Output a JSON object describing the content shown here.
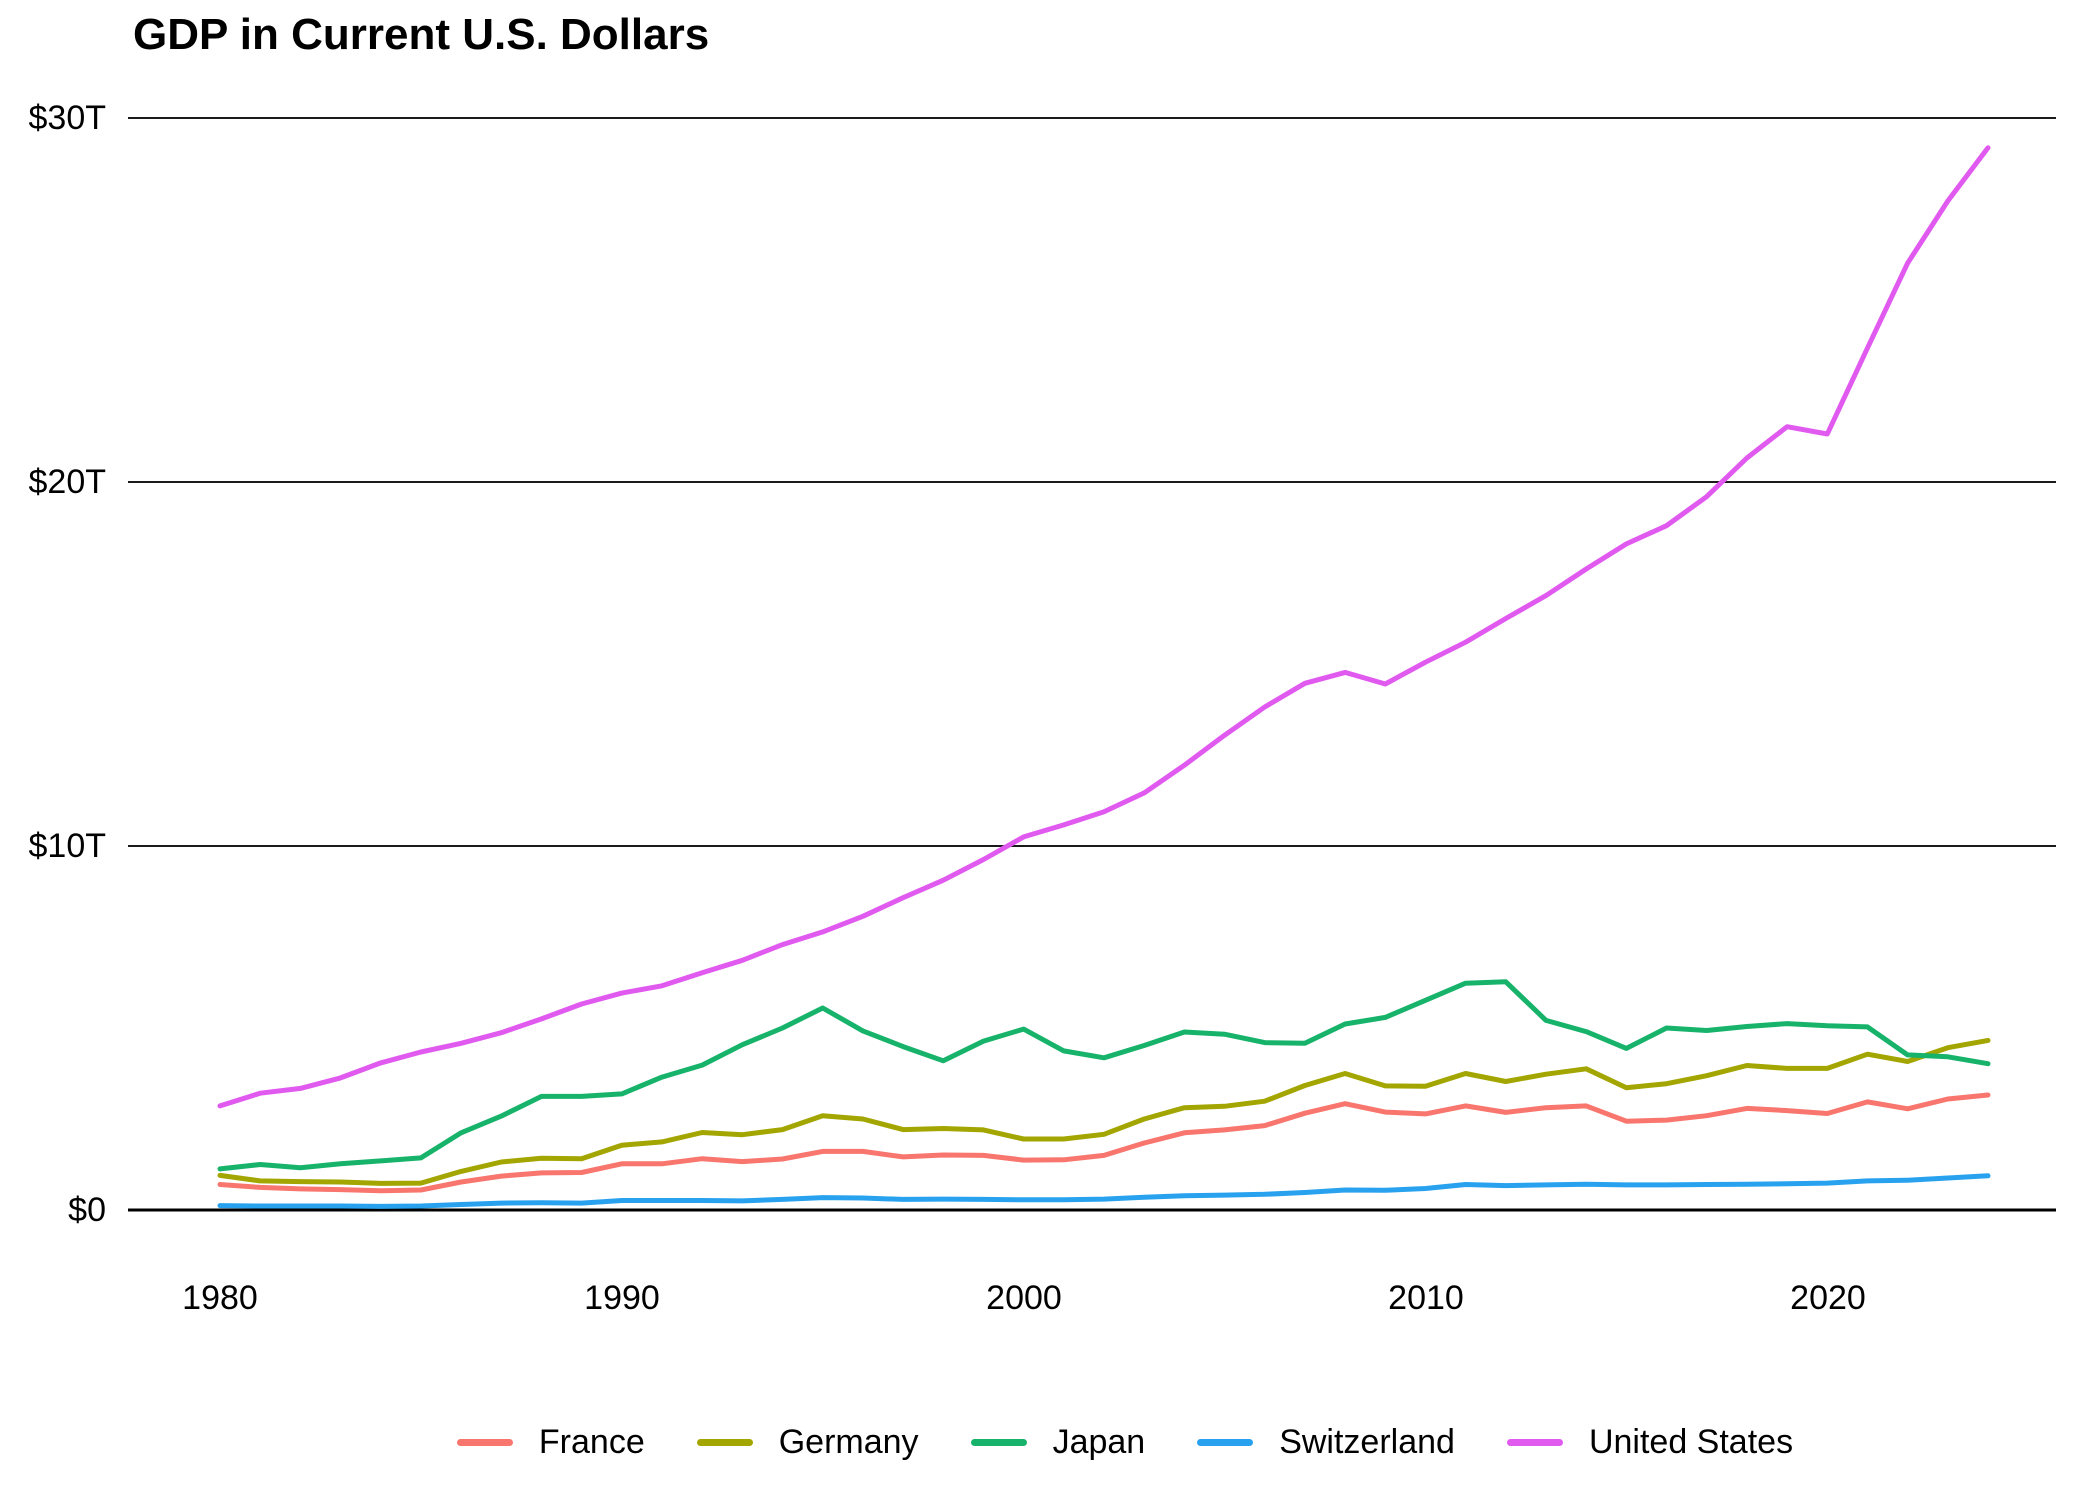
{
  "chart_data": {
    "type": "line",
    "title": "GDP in Current U.S. Dollars",
    "xlabel": "",
    "ylabel": "",
    "unit": "trillion USD",
    "xlim": [
      1980,
      2024
    ],
    "ylim": [
      0,
      30
    ],
    "grid": "horizontal",
    "legend_position": "bottom",
    "y_tick_labels": [
      "$30T",
      "$20T",
      "$10T",
      "$0"
    ],
    "y_tick_values": [
      30,
      20,
      10,
      0
    ],
    "x_tick_labels": [
      "1980",
      "1990",
      "2000",
      "2010",
      "2020"
    ],
    "x_tick_values": [
      1980,
      1990,
      2000,
      2010,
      2020
    ],
    "x": [
      1980,
      1981,
      1982,
      1983,
      1984,
      1985,
      1986,
      1987,
      1988,
      1989,
      1990,
      1991,
      1992,
      1993,
      1994,
      1995,
      1996,
      1997,
      1998,
      1999,
      2000,
      2001,
      2002,
      2003,
      2004,
      2005,
      2006,
      2007,
      2008,
      2009,
      2010,
      2011,
      2012,
      2013,
      2014,
      2015,
      2016,
      2017,
      2018,
      2019,
      2020,
      2021,
      2022,
      2023,
      2024
    ],
    "series": [
      {
        "name": "France",
        "color": "#F8766D",
        "values": [
          0.7,
          0.62,
          0.58,
          0.56,
          0.53,
          0.55,
          0.77,
          0.93,
          1.02,
          1.03,
          1.27,
          1.27,
          1.41,
          1.33,
          1.4,
          1.61,
          1.61,
          1.46,
          1.51,
          1.5,
          1.37,
          1.38,
          1.5,
          1.84,
          2.12,
          2.2,
          2.32,
          2.66,
          2.92,
          2.69,
          2.64,
          2.86,
          2.68,
          2.81,
          2.86,
          2.44,
          2.47,
          2.59,
          2.79,
          2.73,
          2.65,
          2.97,
          2.78,
          3.05,
          3.16
        ]
      },
      {
        "name": "Germany",
        "color": "#A3A500",
        "values": [
          0.95,
          0.8,
          0.78,
          0.77,
          0.73,
          0.74,
          1.06,
          1.32,
          1.42,
          1.41,
          1.78,
          1.87,
          2.13,
          2.07,
          2.21,
          2.59,
          2.5,
          2.21,
          2.24,
          2.2,
          1.95,
          1.95,
          2.08,
          2.5,
          2.81,
          2.85,
          2.99,
          3.42,
          3.75,
          3.41,
          3.4,
          3.75,
          3.53,
          3.73,
          3.88,
          3.36,
          3.47,
          3.69,
          3.97,
          3.89,
          3.89,
          4.28,
          4.08,
          4.46,
          4.66
        ]
      },
      {
        "name": "Japan",
        "color": "#17B36B",
        "values": [
          1.13,
          1.25,
          1.16,
          1.27,
          1.35,
          1.43,
          2.12,
          2.58,
          3.12,
          3.12,
          3.19,
          3.65,
          3.98,
          4.54,
          5.0,
          5.55,
          4.92,
          4.49,
          4.1,
          4.64,
          4.97,
          4.37,
          4.18,
          4.52,
          4.89,
          4.83,
          4.6,
          4.58,
          5.11,
          5.29,
          5.76,
          6.23,
          6.27,
          5.21,
          4.9,
          4.44,
          5.0,
          4.93,
          5.04,
          5.12,
          5.06,
          5.03,
          4.26,
          4.21,
          4.02
        ]
      },
      {
        "name": "Switzerland",
        "color": "#28A2EE",
        "values": [
          0.12,
          0.11,
          0.11,
          0.11,
          0.1,
          0.11,
          0.15,
          0.19,
          0.2,
          0.19,
          0.26,
          0.26,
          0.26,
          0.25,
          0.29,
          0.34,
          0.33,
          0.29,
          0.3,
          0.29,
          0.28,
          0.28,
          0.3,
          0.35,
          0.39,
          0.41,
          0.43,
          0.48,
          0.55,
          0.54,
          0.59,
          0.7,
          0.67,
          0.69,
          0.71,
          0.69,
          0.69,
          0.7,
          0.71,
          0.72,
          0.74,
          0.8,
          0.82,
          0.88,
          0.94
        ]
      },
      {
        "name": "United States",
        "color": "#E15AF0",
        "values": [
          2.86,
          3.21,
          3.34,
          3.63,
          4.04,
          4.34,
          4.58,
          4.87,
          5.25,
          5.66,
          5.96,
          6.16,
          6.52,
          6.86,
          7.29,
          7.64,
          8.07,
          8.58,
          9.06,
          9.63,
          10.25,
          10.58,
          10.94,
          11.46,
          12.22,
          13.04,
          13.82,
          14.47,
          14.77,
          14.45,
          15.05,
          15.6,
          16.25,
          16.88,
          17.61,
          18.3,
          18.8,
          19.6,
          20.66,
          21.52,
          21.32,
          23.68,
          26.01,
          27.72,
          29.18
        ]
      }
    ],
    "style": {
      "gridline_color": "#1a1a1a",
      "axis_color": "#000000",
      "background": "#ffffff",
      "line_width": 5
    }
  }
}
